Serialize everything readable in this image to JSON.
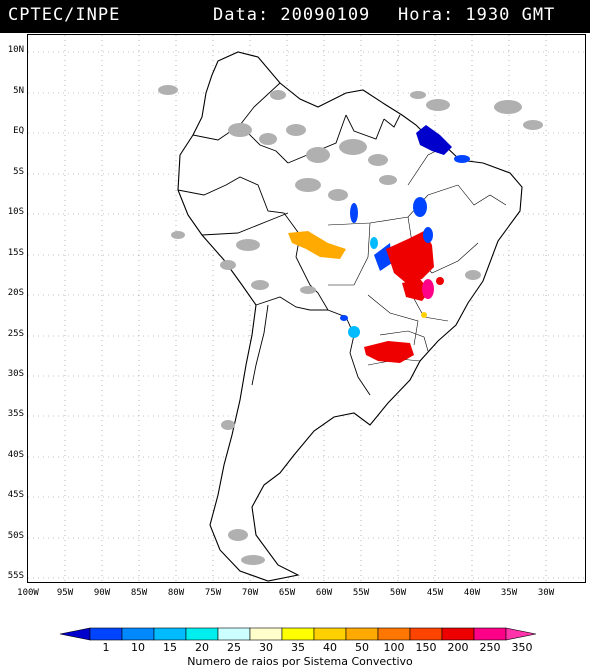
{
  "header": {
    "source": "CPTEC/INPE",
    "date_label": "Data: 20090109",
    "time_label": "Hora: 1930 GMT"
  },
  "map": {
    "lat_labels": [
      "10N",
      "5N",
      "EQ",
      "5S",
      "10S",
      "15S",
      "20S",
      "25S",
      "30S",
      "35S",
      "40S",
      "45S",
      "50S",
      "55S"
    ],
    "lon_labels": [
      "100W",
      "95W",
      "90W",
      "85W",
      "80W",
      "75W",
      "70W",
      "65W",
      "60W",
      "55W",
      "50W",
      "45W",
      "40W",
      "35W",
      "30W"
    ]
  },
  "colorbar": {
    "title": "Numero de raios por Sistema Convectivo",
    "ticks": [
      "1",
      "10",
      "15",
      "20",
      "25",
      "30",
      "35",
      "40",
      "50",
      "100",
      "150",
      "200",
      "250",
      "350"
    ],
    "colors": [
      "#0000cc",
      "#0044ff",
      "#0088ff",
      "#00bbff",
      "#00eeee",
      "#ccffff",
      "#ffffcc",
      "#ffff00",
      "#ffd000",
      "#ffaa00",
      "#ff7700",
      "#ff4400",
      "#ee0000",
      "#ff0088",
      "#ff33aa"
    ]
  },
  "legend_colors": {
    "land": "#ffffff",
    "cloud": "#b0b0b0",
    "border": "#000000"
  }
}
